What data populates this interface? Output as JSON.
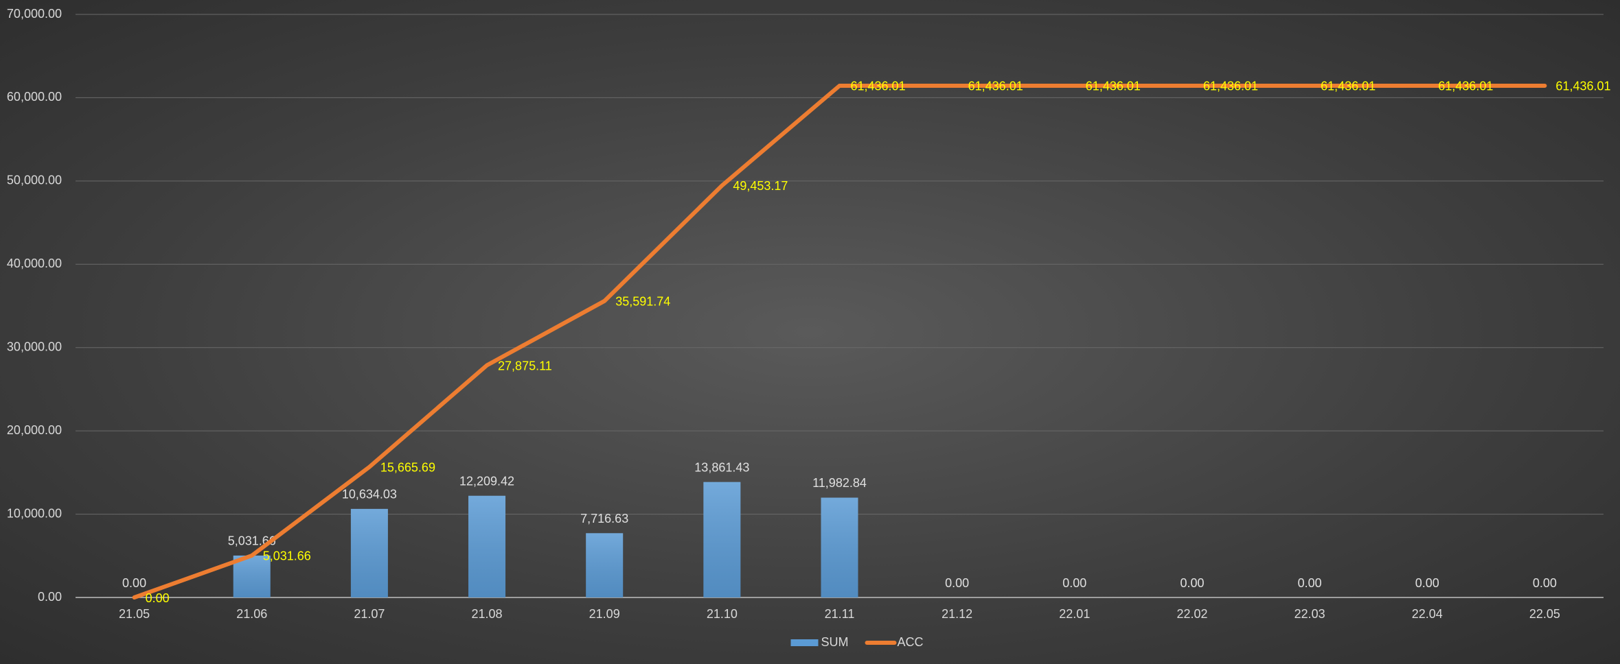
{
  "chart_data": {
    "type": "bar",
    "categories": [
      "21.05",
      "21.06",
      "21.07",
      "21.08",
      "21.09",
      "21.10",
      "21.11",
      "21.12",
      "22.01",
      "22.02",
      "22.03",
      "22.04",
      "22.05"
    ],
    "series": [
      {
        "name": "SUM",
        "type": "bar",
        "color": "#5b9bd5",
        "label_color": "#e0e0e0",
        "values": [
          0,
          5031.66,
          10634.03,
          12209.42,
          7716.63,
          13861.43,
          11982.84,
          0,
          0,
          0,
          0,
          0,
          0
        ],
        "value_labels": [
          "0.00",
          "5,031.66",
          "10,634.03",
          "12,209.42",
          "7,716.63",
          "13,861.43",
          "11,982.84",
          "0.00",
          "0.00",
          "0.00",
          "0.00",
          "0.00",
          "0.00"
        ]
      },
      {
        "name": "ACC",
        "type": "line",
        "color": "#ed7d31",
        "label_color": "#ffff00",
        "values": [
          0,
          5031.66,
          15665.69,
          27875.11,
          35591.74,
          49453.17,
          61436.01,
          61436.01,
          61436.01,
          61436.01,
          61436.01,
          61436.01,
          61436.01
        ],
        "value_labels": [
          "0.00",
          "5,031.66",
          "15,665.69",
          "27,875.11",
          "35,591.74",
          "49,453.17",
          "61,436.01",
          "61,436.01",
          "61,436.01",
          "61,436.01",
          "61,436.01",
          "61,436.01",
          "61,436.01"
        ]
      }
    ],
    "ylim": [
      0,
      70000
    ],
    "yticks": [
      {
        "value": 0,
        "label": "0.00"
      },
      {
        "value": 10000,
        "label": "10,000.00"
      },
      {
        "value": 20000,
        "label": "20,000.00"
      },
      {
        "value": 30000,
        "label": "30,000.00"
      },
      {
        "value": 40000,
        "label": "40,000.00"
      },
      {
        "value": 50000,
        "label": "50,000.00"
      },
      {
        "value": 60000,
        "label": "60,000.00"
      },
      {
        "value": 70000,
        "label": "70,000.00"
      }
    ],
    "grid": true,
    "legend": "bottom"
  }
}
